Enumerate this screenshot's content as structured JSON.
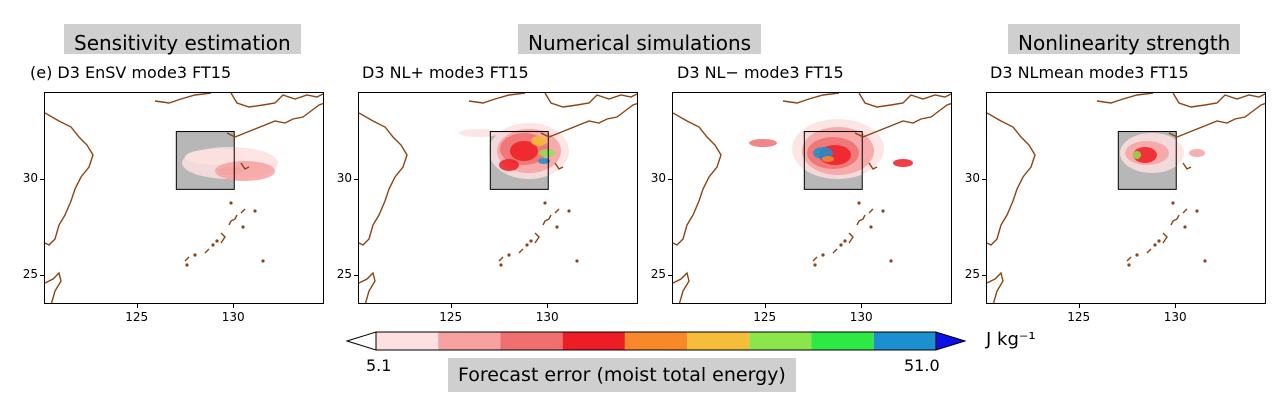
{
  "section_labels": {
    "left": "Sensitivity estimation",
    "middle": "Numerical simulations",
    "right": "Nonlinearity strength"
  },
  "panels": [
    {
      "title": "(e) D3 EnSV mode3 FT15"
    },
    {
      "title": "D3 NL+ mode3 FT15"
    },
    {
      "title": "D3 NL− mode3 FT15"
    },
    {
      "title": "D3 NLmean mode3 FT15"
    }
  ],
  "axes": {
    "x_ticks": [
      "125",
      "130"
    ],
    "y_ticks": [
      "30",
      "25"
    ]
  },
  "colorbar": {
    "min_label": "5.1",
    "max_label": "51.0",
    "unit": "J kg⁻¹",
    "caption": "Forecast error (moist total energy)"
  },
  "colors": {
    "levels": [
      "#fde0e0",
      "#f7a1a1",
      "#f07070",
      "#ee1c24",
      "#f7892b",
      "#f6bd3a",
      "#8ae64a",
      "#2ee844",
      "#1b8fd0"
    ],
    "under": "#ffffff",
    "over": "#0b10e8",
    "coast": "#8b4513",
    "box_fill": "#b7b7b7"
  },
  "chart_data": [
    {
      "type": "heatmap",
      "title": "(e) D3 EnSV mode3 FT15",
      "xticks": [
        125,
        130
      ],
      "yticks": [
        25,
        30
      ],
      "region_box": {
        "lon": [
          127,
          130
        ],
        "lat": [
          29.5,
          32.5
        ]
      }
    },
    {
      "type": "heatmap",
      "title": "D3 NL+ mode3 FT15",
      "xticks": [
        125,
        130
      ],
      "yticks": [
        25,
        30
      ],
      "region_box": {
        "lon": [
          127,
          130
        ],
        "lat": [
          29.5,
          32.5
        ]
      }
    },
    {
      "type": "heatmap",
      "title": "D3 NL− mode3 FT15",
      "xticks": [
        125,
        130
      ],
      "yticks": [
        25,
        30
      ],
      "region_box": {
        "lon": [
          127,
          130
        ],
        "lat": [
          29.5,
          32.5
        ]
      }
    },
    {
      "type": "heatmap",
      "title": "D3 NLmean mode3 FT15",
      "xticks": [
        125,
        130
      ],
      "yticks": [
        25,
        30
      ],
      "region_box": {
        "lon": [
          127,
          130
        ],
        "lat": [
          29.5,
          32.5
        ]
      }
    }
  ]
}
